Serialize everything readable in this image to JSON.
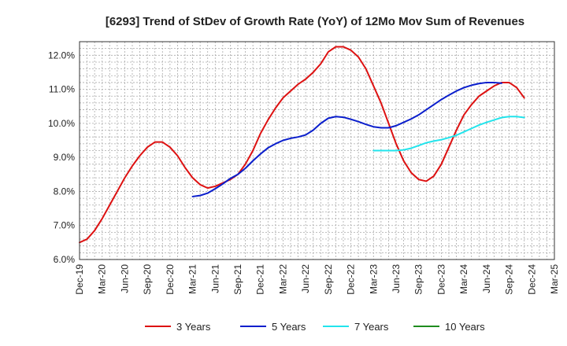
{
  "chart_data": {
    "type": "line",
    "title": "[6293]  Trend of StDev of Growth Rate (YoY) of 12Mo Mov Sum of Revenues",
    "xlabel": "",
    "ylabel": "",
    "ylim": [
      6.0,
      12.4
    ],
    "grid": true,
    "legend_position": "bottom",
    "x_ticks": [
      "Dec-19",
      "Mar-20",
      "Jun-20",
      "Sep-20",
      "Dec-20",
      "Mar-21",
      "Jun-21",
      "Sep-21",
      "Dec-21",
      "Mar-22",
      "Jun-22",
      "Sep-22",
      "Dec-22",
      "Mar-23",
      "Jun-23",
      "Sep-23",
      "Dec-23",
      "Mar-24",
      "Jun-24",
      "Sep-24",
      "Dec-24",
      "Mar-25"
    ],
    "y_ticks": [
      6.0,
      7.0,
      8.0,
      9.0,
      10.0,
      11.0,
      12.0
    ],
    "y_tick_labels": [
      "6.0%",
      "7.0%",
      "8.0%",
      "9.0%",
      "10.0%",
      "11.0%",
      "12.0%"
    ],
    "series": [
      {
        "name": "3 Years",
        "color": "#dd1111",
        "start_index": 0,
        "values": [
          6.5,
          6.6,
          6.85,
          7.2,
          7.6,
          8.0,
          8.4,
          8.75,
          9.05,
          9.3,
          9.45,
          9.45,
          9.3,
          9.05,
          8.7,
          8.4,
          8.2,
          8.1,
          8.15,
          8.25,
          8.35,
          8.5,
          8.8,
          9.2,
          9.7,
          10.1,
          10.45,
          10.75,
          10.95,
          11.15,
          11.3,
          11.5,
          11.75,
          12.1,
          12.25,
          12.25,
          12.15,
          11.95,
          11.6,
          11.1,
          10.6,
          10.0,
          9.4,
          8.9,
          8.55,
          8.35,
          8.3,
          8.45,
          8.8,
          9.3,
          9.8,
          10.25,
          10.55,
          10.8,
          10.95,
          11.1,
          11.2,
          11.2,
          11.05,
          10.75
        ]
      },
      {
        "name": "5 Years",
        "color": "#0a1ecc",
        "start_index": 15,
        "values": [
          7.85,
          7.88,
          7.95,
          8.08,
          8.22,
          8.38,
          8.5,
          8.68,
          8.9,
          9.1,
          9.28,
          9.4,
          9.5,
          9.56,
          9.6,
          9.66,
          9.8,
          10.0,
          10.15,
          10.2,
          10.18,
          10.12,
          10.05,
          9.97,
          9.9,
          9.87,
          9.87,
          9.93,
          10.03,
          10.13,
          10.25,
          10.4,
          10.55,
          10.7,
          10.83,
          10.95,
          11.05,
          11.12,
          11.17,
          11.2,
          11.2,
          11.18
        ]
      },
      {
        "name": "7 Years",
        "color": "#22e4ec",
        "start_index": 39,
        "values": [
          9.2,
          9.2,
          9.2,
          9.2,
          9.22,
          9.27,
          9.35,
          9.43,
          9.48,
          9.52,
          9.58,
          9.65,
          9.75,
          9.85,
          9.95,
          10.03,
          10.1,
          10.17,
          10.2,
          10.2,
          10.17
        ]
      },
      {
        "name": "10 Years",
        "color": "#1e8c1e",
        "start_index": 0,
        "values": []
      }
    ]
  }
}
